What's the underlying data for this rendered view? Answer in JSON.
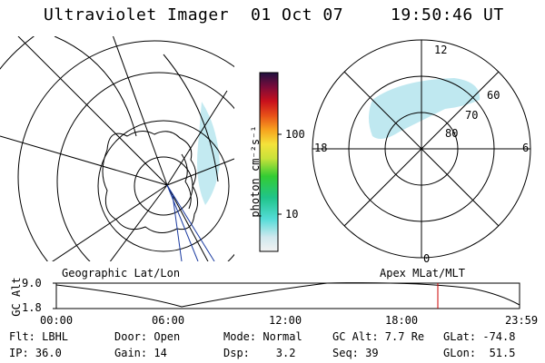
{
  "header": {
    "title": "Ultraviolet Imager",
    "date": "01 Oct 07",
    "time": "19:50:46 UT"
  },
  "colorbar": {
    "unit_label": "photon cm⁻²s⁻¹",
    "ticks": [
      "100",
      "10"
    ]
  },
  "polar_plot": {
    "mlt_labels": [
      "12",
      "18",
      "6",
      "0"
    ],
    "lat_labels": [
      "60",
      "70",
      "80"
    ]
  },
  "timeline": {
    "left_caption": "Geographic Lat/Lon",
    "right_caption": "Apex MLat/MLT",
    "y_axis_label": "GC Alt",
    "y_ticks": [
      "9.0",
      "1.8"
    ],
    "x_ticks": [
      "00:00",
      "06:00",
      "12:00",
      "18:00",
      "23:59"
    ]
  },
  "info": {
    "row1": {
      "filter": "Flt: LBHL",
      "door": "Door: Open",
      "mode": "Mode: Normal",
      "gc_alt": "GC Alt: 7.7 Re",
      "glat": "GLat: -74.8"
    },
    "row2": {
      "ip": "IP: 36.0",
      "gain": "Gain: 14",
      "dsp": "Dsp:    3.2",
      "seq": "Seq: 39",
      "glon": "GLon:  51.5"
    }
  },
  "colors": {
    "marker_line": "#cc0000",
    "aurora": "#b8e6ee"
  }
}
